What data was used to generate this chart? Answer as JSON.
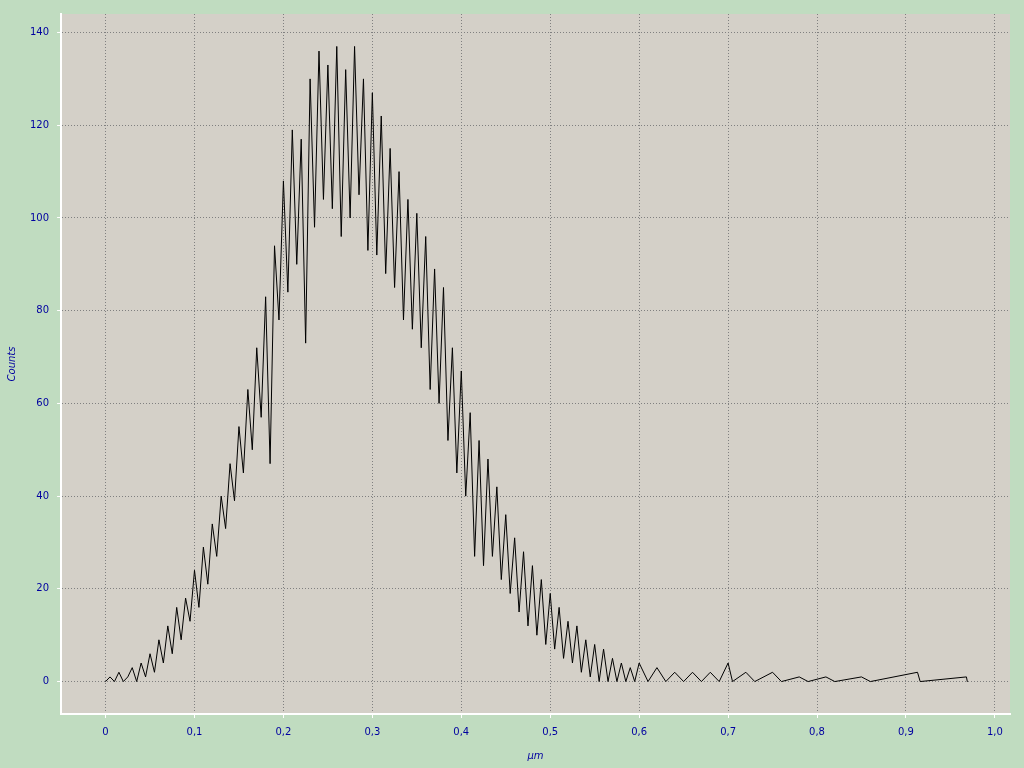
{
  "chart_data": {
    "type": "line",
    "xlabel": "µm",
    "ylabel": "Counts",
    "xlim": [
      -0.05,
      1.017
    ],
    "ylim": [
      -7,
      144
    ],
    "xticks": [
      0,
      {
        "value": 0.1,
        "label": "0,1"
      },
      {
        "value": 0.2,
        "label": "0,2"
      },
      {
        "value": 0.3,
        "label": "0,3"
      },
      {
        "value": 0.4,
        "label": "0,4"
      },
      {
        "value": 0.5,
        "label": "0,5"
      },
      {
        "value": 0.6,
        "label": "0,6"
      },
      {
        "value": 0.7,
        "label": "0,7"
      },
      {
        "value": 0.8,
        "label": "0,8"
      },
      {
        "value": 0.9,
        "label": "0,9"
      },
      {
        "value": 1.0,
        "label": "1,0"
      }
    ],
    "yticks": [
      0,
      20,
      40,
      60,
      80,
      100,
      120,
      140
    ],
    "grid": true,
    "marker": "none",
    "line_style": "solid",
    "series": [
      {
        "color": "#000000",
        "x": [
          0,
          0.005,
          0.01,
          0.015,
          0.02,
          0.025,
          0.03,
          0.035,
          0.04,
          0.045,
          0.05,
          0.055,
          0.06,
          0.065,
          0.07,
          0.075,
          0.08,
          0.085,
          0.09,
          0.095,
          0.1,
          0.105,
          0.11,
          0.115,
          0.12,
          0.125,
          0.13,
          0.135,
          0.14,
          0.145,
          0.15,
          0.155,
          0.16,
          0.165,
          0.17,
          0.175,
          0.18,
          0.185,
          0.19,
          0.195,
          0.2,
          0.205,
          0.21,
          0.215,
          0.22,
          0.225,
          0.23,
          0.235,
          0.24,
          0.245,
          0.25,
          0.255,
          0.26,
          0.265,
          0.27,
          0.275,
          0.28,
          0.285,
          0.29,
          0.295,
          0.3,
          0.305,
          0.31,
          0.315,
          0.32,
          0.325,
          0.33,
          0.335,
          0.34,
          0.345,
          0.35,
          0.355,
          0.36,
          0.365,
          0.37,
          0.375,
          0.38,
          0.385,
          0.39,
          0.395,
          0.4,
          0.405,
          0.41,
          0.415,
          0.42,
          0.425,
          0.43,
          0.435,
          0.44,
          0.445,
          0.45,
          0.455,
          0.46,
          0.465,
          0.47,
          0.475,
          0.48,
          0.485,
          0.49,
          0.495,
          0.5,
          0.505,
          0.51,
          0.515,
          0.52,
          0.525,
          0.53,
          0.535,
          0.54,
          0.545,
          0.55,
          0.555,
          0.56,
          0.565,
          0.57,
          0.575,
          0.58,
          0.585,
          0.59,
          0.595,
          0.6,
          0.61,
          0.62,
          0.63,
          0.64,
          0.65,
          0.66,
          0.67,
          0.68,
          0.69,
          0.7,
          0.705,
          0.72,
          0.73,
          0.75,
          0.76,
          0.78,
          0.79,
          0.81,
          0.82,
          0.85,
          0.86,
          0.913,
          0.916,
          0.968,
          0.969
        ],
        "values": [
          0,
          1,
          0,
          2,
          0,
          1,
          3,
          0,
          4,
          1,
          6,
          2,
          9,
          4,
          12,
          6,
          16,
          9,
          18,
          13,
          24,
          16,
          29,
          21,
          34,
          27,
          40,
          33,
          47,
          39,
          55,
          45,
          63,
          50,
          72,
          57,
          83,
          47,
          94,
          78,
          108,
          84,
          119,
          90,
          117,
          73,
          130,
          98,
          136,
          104,
          133,
          102,
          137,
          96,
          132,
          100,
          137,
          105,
          130,
          93,
          127,
          92,
          122,
          88,
          115,
          85,
          110,
          78,
          104,
          76,
          101,
          72,
          96,
          63,
          89,
          60,
          85,
          52,
          72,
          45,
          67,
          40,
          58,
          27,
          52,
          25,
          48,
          27,
          42,
          22,
          36,
          19,
          31,
          15,
          28,
          12,
          25,
          10,
          22,
          8,
          19,
          7,
          16,
          5,
          13,
          4,
          12,
          2,
          9,
          1,
          8,
          0,
          7,
          0,
          5,
          0,
          4,
          0,
          3,
          0,
          4,
          0,
          3,
          0,
          2,
          0,
          2,
          0,
          2,
          0,
          4,
          0,
          2,
          0,
          2,
          0,
          1,
          0,
          1,
          0,
          1,
          0,
          2,
          0,
          1,
          0
        ]
      }
    ]
  }
}
